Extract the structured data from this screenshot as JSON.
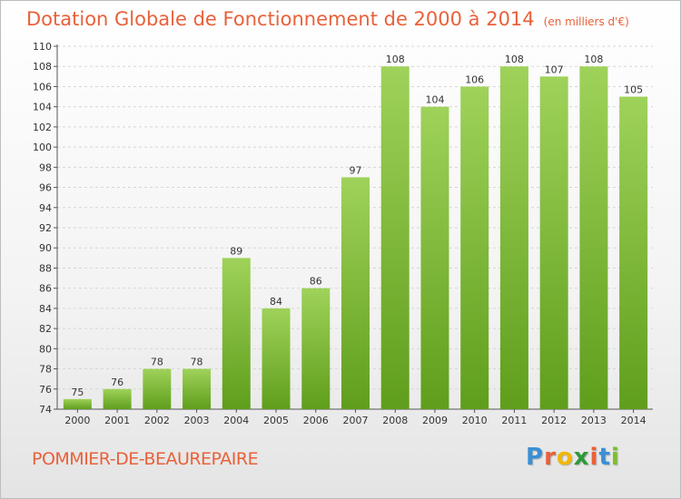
{
  "header": {
    "title": "Dotation Globale de Fonctionnement de 2000 à 2014",
    "subtitle": "(en milliers d'€)"
  },
  "footer": {
    "commune": "POMMIER-DE-BEAUREPAIRE",
    "logo": [
      "P",
      "r",
      "o",
      "x",
      "i",
      "t",
      "i"
    ],
    "logo_colors": [
      "#3a8fd6",
      "#e8613a",
      "#f2b705",
      "#2d9a3a",
      "#e8613a",
      "#3a8fd6",
      "#7bbf2a"
    ]
  },
  "chart_data": {
    "type": "bar",
    "title": "Dotation Globale de Fonctionnement de 2000 à 2014",
    "subtitle": "(en milliers d'€)",
    "categories": [
      "2000",
      "2001",
      "2002",
      "2003",
      "2004",
      "2005",
      "2006",
      "2007",
      "2008",
      "2009",
      "2010",
      "2011",
      "2012",
      "2013",
      "2014"
    ],
    "values": [
      75,
      76,
      78,
      78,
      89,
      84,
      86,
      97,
      108,
      104,
      106,
      108,
      107,
      108,
      105
    ],
    "ylim": [
      74,
      110
    ],
    "yticks": [
      74,
      76,
      78,
      80,
      82,
      84,
      86,
      88,
      90,
      92,
      94,
      96,
      98,
      100,
      102,
      104,
      106,
      108,
      110
    ],
    "grid": true,
    "bar_color": "#7ab82e"
  }
}
